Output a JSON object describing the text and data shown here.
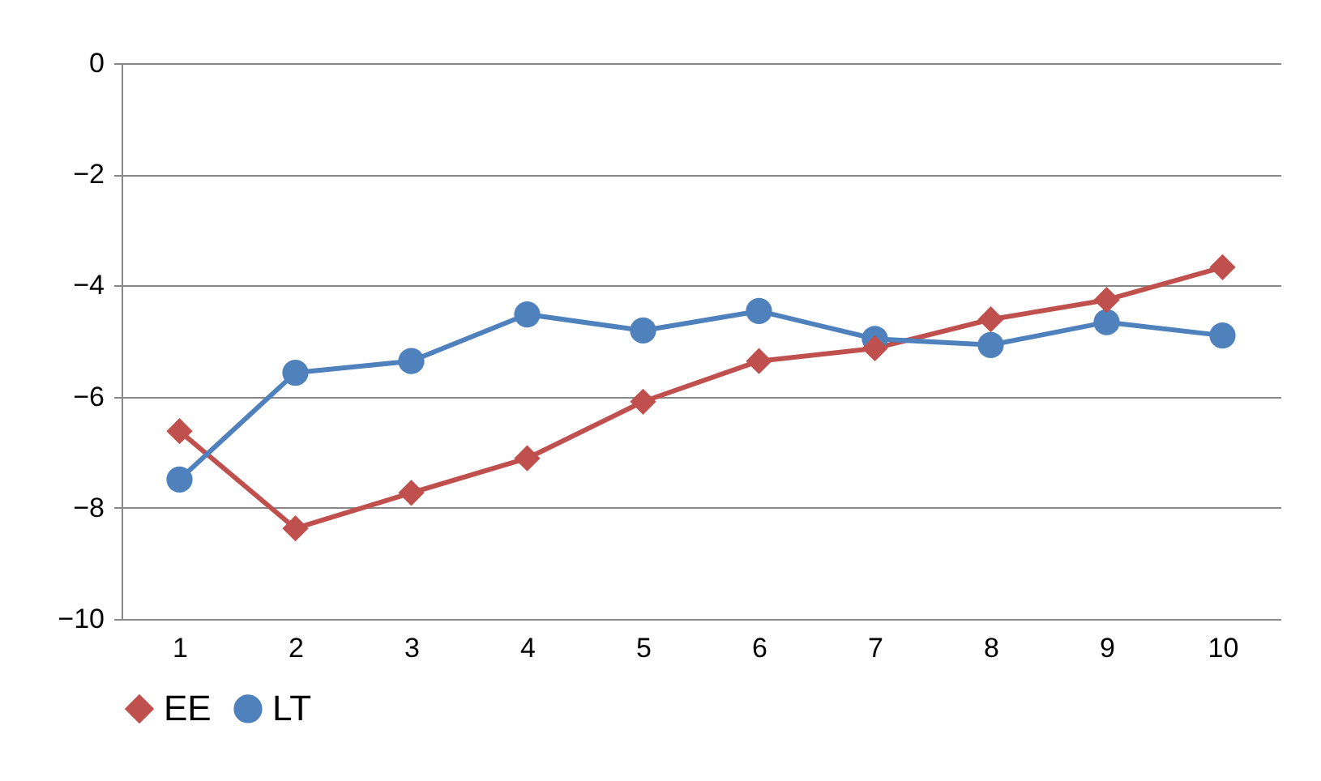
{
  "chart_data": {
    "type": "line",
    "categories": [
      "1",
      "2",
      "3",
      "4",
      "5",
      "6",
      "7",
      "8",
      "9",
      "10"
    ],
    "series": [
      {
        "name": "EE",
        "color": "#c0504d",
        "marker": "diamond",
        "values": [
          -6.62,
          -8.37,
          -7.73,
          -7.11,
          -6.09,
          -5.36,
          -5.13,
          -4.61,
          -4.26,
          -3.67
        ]
      },
      {
        "name": "LT",
        "color": "#4f81bd",
        "marker": "circle",
        "values": [
          -7.49,
          -5.57,
          -5.36,
          -4.52,
          -4.81,
          -4.46,
          -4.96,
          -5.07,
          -4.66,
          -4.9
        ]
      }
    ],
    "ylim": [
      -10,
      0
    ],
    "yticks": [
      -10,
      -8,
      -6,
      -4,
      -2,
      0
    ],
    "grid": "y",
    "legend": "bottom"
  }
}
